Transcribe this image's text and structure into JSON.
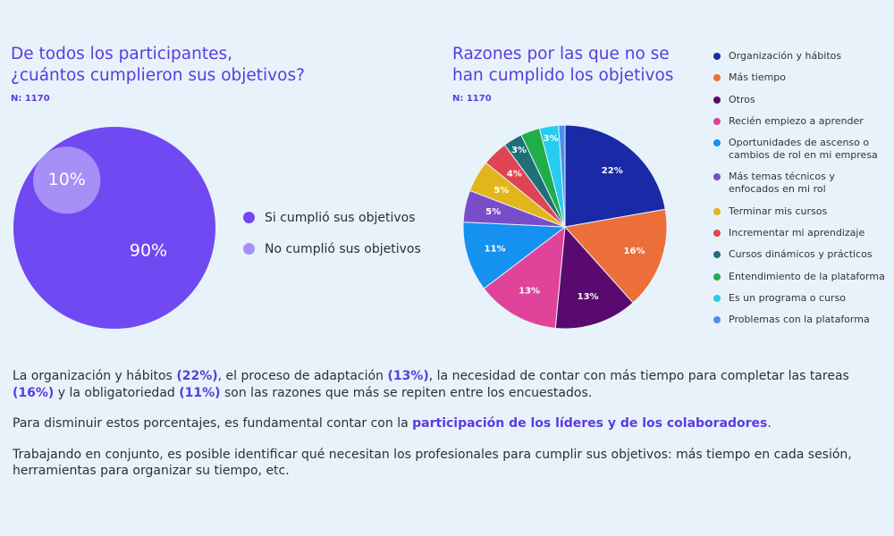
{
  "chart_data": [
    {
      "type": "circle",
      "title": "De todos los participantes, ¿cuántos cumplieron sus objetivos?",
      "subtitle": "N: 1170",
      "categories": [
        "Si cumplió sus objetivos",
        "No cumplió sus objetivos"
      ],
      "values": [
        90,
        10
      ],
      "value_labels": [
        "90%",
        "10%"
      ],
      "colors": [
        "#7049f2",
        "#a68ff5"
      ]
    },
    {
      "type": "pie",
      "title": "Razones por las que no se han cumplido los objetivos",
      "subtitle": "N: 1170",
      "categories": [
        "Organización y hábitos",
        "Más tiempo",
        "Otros",
        "Recién empiezo a aprender",
        "Oportunidades de ascenso o cambios de rol en mi empresa",
        "Más temas técnicos y enfocados en mi rol",
        "Terminar mis cursos",
        "Incrementar mi aprendizaje",
        "Cursos dinámicos y prácticos",
        "Entendimiento de la plataforma",
        "Es un programa o curso",
        "Problemas con la plataforma"
      ],
      "values": [
        22,
        16,
        13,
        13,
        11,
        5,
        5,
        4,
        3,
        3,
        3,
        1
      ],
      "value_labels": [
        "22%",
        "16%",
        "13%",
        "13%",
        "11%",
        "5%",
        "5%",
        "4%",
        "3%",
        null,
        "3%",
        null
      ],
      "colors": [
        "#1a2aa6",
        "#ec6f3a",
        "#5a0a6e",
        "#e0439a",
        "#1591f0",
        "#7a4dc8",
        "#e2b61a",
        "#e04452",
        "#1e6f78",
        "#1fae4a",
        "#27cdf0",
        "#4a90f0"
      ]
    }
  ],
  "text": [
    [
      {
        "text": "La organización y hábitos ",
        "highlight": false
      },
      {
        "text": "(22%)",
        "highlight": true
      },
      {
        "text": ", el proceso de adaptación ",
        "highlight": false
      },
      {
        "text": "(13%)",
        "highlight": true
      },
      {
        "text": ", la necesidad de contar con más tiempo para completar las tareas ",
        "highlight": false
      },
      {
        "text": "(16%)",
        "highlight": true
      },
      {
        "text": " y la obligatoriedad ",
        "highlight": false
      },
      {
        "text": "(11%)",
        "highlight": true
      },
      {
        "text": " son las razones que más se repiten entre los encuestados.",
        "highlight": false
      }
    ],
    [
      {
        "text": "Para disminuir estos porcentajes, es fundamental contar con la ",
        "highlight": false
      },
      {
        "text": "participación de los líderes y de los colaboradores",
        "highlight": true
      },
      {
        "text": ".",
        "highlight": false
      }
    ],
    [
      {
        "text": "Trabajando en conjunto, es posible identificar qué necesitan los profesionales para cumplir sus objetivos: más tiempo en cada sesión, herramientas para organizar su tiempo, etc.",
        "highlight": false
      }
    ]
  ]
}
